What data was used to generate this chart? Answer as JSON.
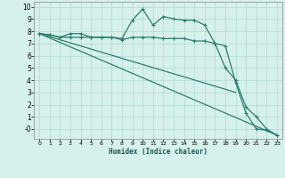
{
  "xlabel": "Humidex (Indice chaleur)",
  "background_color": "#d6f0ec",
  "grid_color": "#b0d8d4",
  "line_color": "#2e7d6e",
  "xlim": [
    -0.5,
    23.5
  ],
  "ylim": [
    -0.8,
    10.4
  ],
  "xticks": [
    0,
    1,
    2,
    3,
    4,
    5,
    6,
    7,
    8,
    9,
    10,
    11,
    12,
    13,
    14,
    15,
    16,
    17,
    18,
    19,
    20,
    21,
    22,
    23
  ],
  "yticks": [
    0,
    1,
    2,
    3,
    4,
    5,
    6,
    7,
    8,
    9,
    10
  ],
  "ytick_labels": [
    "-0",
    "1",
    "2",
    "3",
    "4",
    "5",
    "6",
    "7",
    "8",
    "9",
    "10"
  ],
  "line1_x": [
    0,
    1,
    2,
    3,
    4,
    5,
    6,
    7,
    8,
    9,
    10,
    11,
    12,
    13,
    14,
    15,
    16,
    17,
    18,
    19,
    20,
    21,
    22,
    23
  ],
  "line1_y": [
    7.8,
    7.7,
    7.5,
    7.8,
    7.8,
    7.5,
    7.5,
    7.5,
    7.4,
    8.9,
    9.8,
    8.5,
    9.2,
    9.0,
    8.9,
    8.9,
    8.5,
    7.0,
    6.8,
    3.8,
    1.3,
    0.0,
    -0.1,
    -0.5
  ],
  "line2_x": [
    0,
    1,
    2,
    3,
    4,
    5,
    6,
    7,
    8,
    9,
    10,
    11,
    12,
    13,
    14,
    15,
    16,
    17,
    18,
    19,
    20,
    21,
    22,
    23
  ],
  "line2_y": [
    7.8,
    7.7,
    7.5,
    7.5,
    7.5,
    7.5,
    7.5,
    7.5,
    7.3,
    7.5,
    7.5,
    7.5,
    7.4,
    7.4,
    7.4,
    7.2,
    7.2,
    7.0,
    5.0,
    4.0,
    1.8,
    1.0,
    0.0,
    -0.5
  ],
  "line3_x": [
    0,
    19
  ],
  "line3_y": [
    7.8,
    3.0
  ],
  "line4_x": [
    0,
    23
  ],
  "line4_y": [
    7.8,
    -0.5
  ]
}
